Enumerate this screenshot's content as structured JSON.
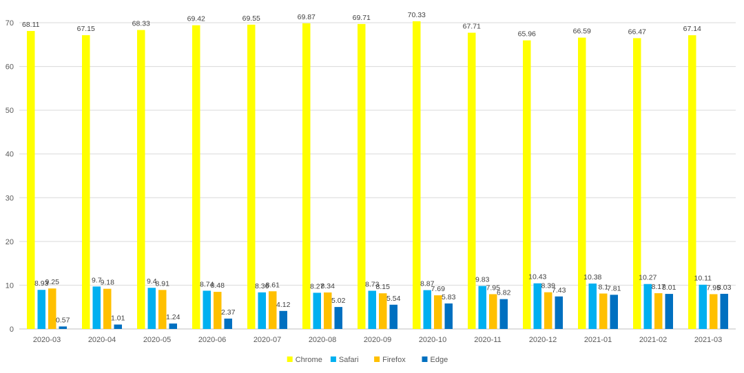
{
  "chart_data": {
    "type": "bar",
    "title": "",
    "xlabel": "",
    "ylabel": "",
    "ylim": [
      0,
      70
    ],
    "yticks": [
      0,
      10,
      20,
      30,
      40,
      50,
      60,
      70
    ],
    "grid": true,
    "legend_position": "bottom",
    "categories": [
      "2020-03",
      "2020-04",
      "2020-05",
      "2020-06",
      "2020-07",
      "2020-08",
      "2020-09",
      "2020-10",
      "2020-11",
      "2020-12",
      "2021-01",
      "2021-02",
      "2021-03"
    ],
    "series": [
      {
        "name": "Chrome",
        "color": "#ffff00",
        "values": [
          68.11,
          67.15,
          68.33,
          69.42,
          69.55,
          69.87,
          69.71,
          70.33,
          67.71,
          65.96,
          66.59,
          66.47,
          67.14
        ]
      },
      {
        "name": "Safari",
        "color": "#00b0f0",
        "values": [
          8.93,
          9.7,
          9.4,
          8.74,
          8.36,
          8.27,
          8.73,
          8.87,
          9.83,
          10.43,
          10.38,
          10.27,
          10.11
        ]
      },
      {
        "name": "Firefox",
        "color": "#ffc000",
        "values": [
          9.25,
          9.18,
          8.91,
          8.48,
          8.61,
          8.34,
          8.15,
          7.69,
          7.95,
          8.39,
          8.1,
          8.17,
          7.95
        ]
      },
      {
        "name": "Edge",
        "color": "#0070c0",
        "values": [
          0.57,
          1.01,
          1.24,
          2.37,
          4.12,
          5.02,
          5.54,
          5.83,
          6.82,
          7.43,
          7.81,
          8.01,
          8.03
        ]
      }
    ]
  }
}
